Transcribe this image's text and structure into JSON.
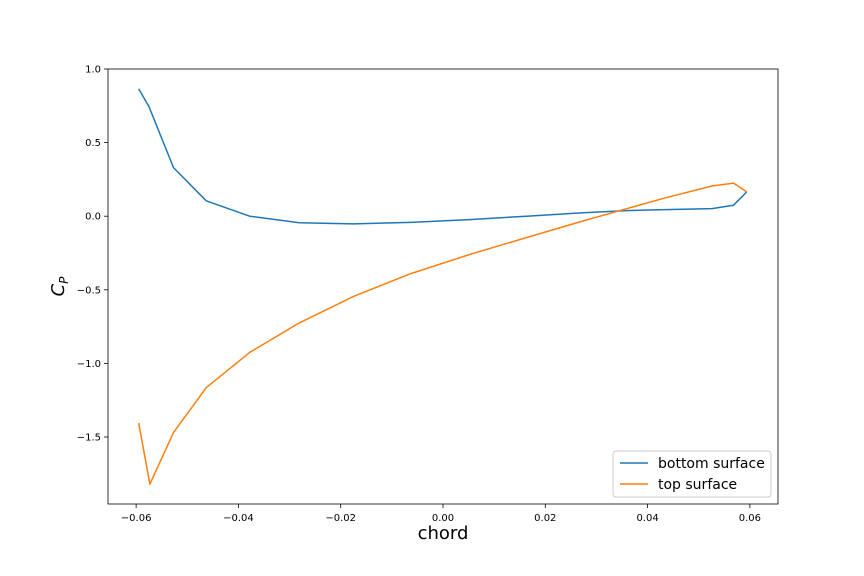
{
  "chart_data": {
    "type": "line",
    "xlabel": "chord",
    "ylabel": "C",
    "ylabel_subscript": "P",
    "xlim": [
      -0.0655,
      0.0655
    ],
    "ylim": [
      -1.955,
      1.0
    ],
    "xticks": [
      -0.06,
      -0.04,
      -0.02,
      0.0,
      0.02,
      0.04,
      0.06
    ],
    "xtick_labels": [
      "−0.06",
      "−0.04",
      "−0.02",
      "0.00",
      "0.02",
      "0.04",
      "0.06"
    ],
    "yticks": [
      1.0,
      0.5,
      0.0,
      -0.5,
      -1.0,
      -1.5
    ],
    "ytick_labels": [
      "1.0",
      "0.5",
      "0.0",
      "−0.5",
      "−1.0",
      "−1.5"
    ],
    "grid": false,
    "legend_position": "lower-right",
    "series": [
      {
        "name": "bottom surface",
        "color": "#1f77b4",
        "x": [
          -0.0595,
          -0.0575,
          -0.0527,
          -0.0463,
          -0.0378,
          -0.0281,
          -0.0175,
          -0.0063,
          0.0052,
          0.0163,
          0.0266,
          0.0358,
          0.0435,
          0.0526,
          0.0568,
          0.0594
        ],
        "y": [
          0.865,
          0.745,
          0.33,
          0.105,
          0.0,
          -0.045,
          -0.052,
          -0.042,
          -0.023,
          0.0,
          0.022,
          0.038,
          0.045,
          0.052,
          0.075,
          0.165
        ]
      },
      {
        "name": "top surface",
        "color": "#ff7f0e",
        "x": [
          -0.0595,
          -0.0573,
          -0.0527,
          -0.0463,
          -0.0378,
          -0.0281,
          -0.0175,
          -0.0063,
          0.0052,
          0.0163,
          0.0266,
          0.0358,
          0.0435,
          0.0526,
          0.0568,
          0.0594
        ],
        "y": [
          -1.405,
          -1.82,
          -1.47,
          -1.165,
          -0.925,
          -0.725,
          -0.545,
          -0.39,
          -0.26,
          -0.145,
          -0.04,
          0.05,
          0.125,
          0.205,
          0.225,
          0.165
        ]
      }
    ]
  }
}
